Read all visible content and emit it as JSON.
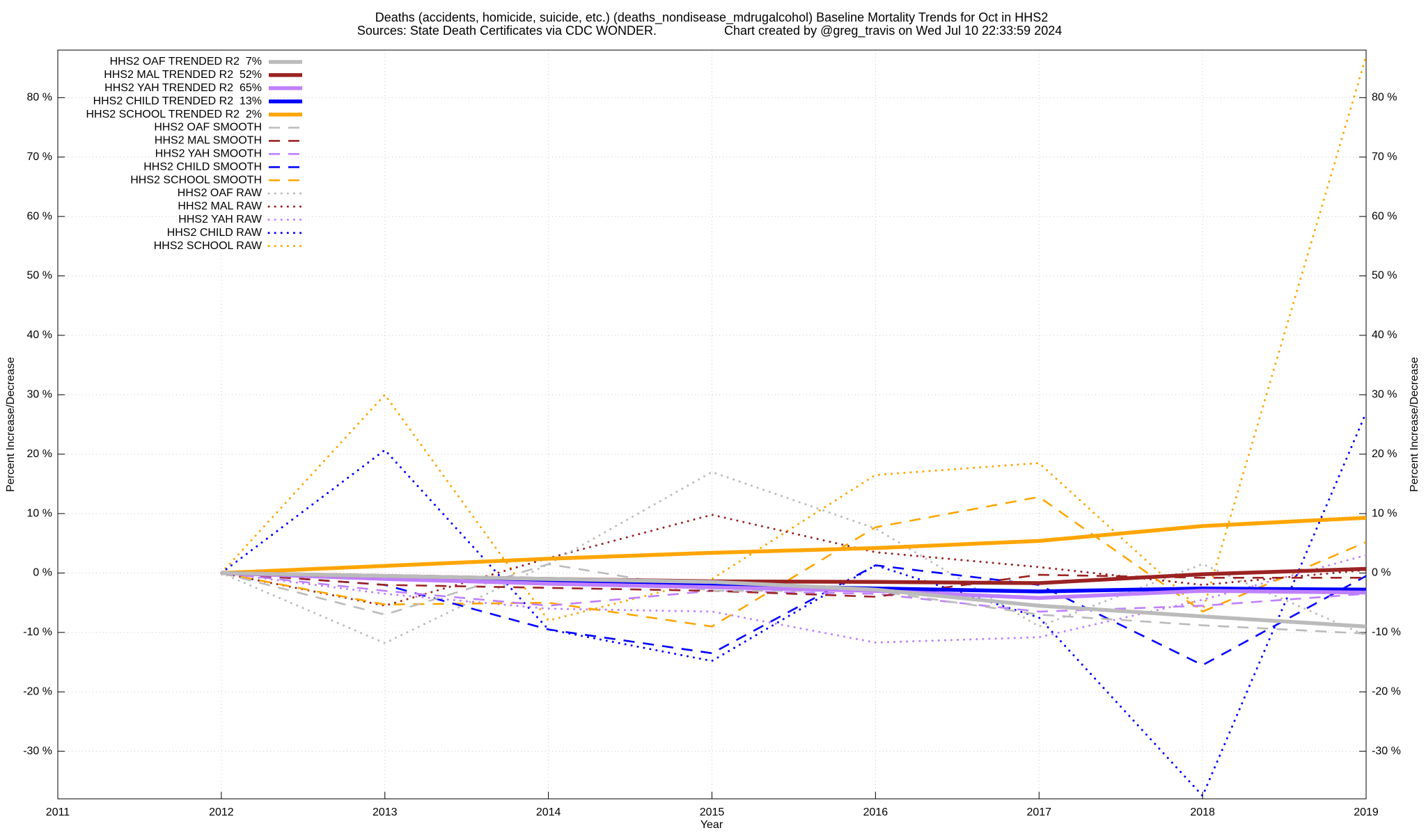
{
  "chart_data": {
    "type": "line",
    "title": "Deaths (accidents, homicide, suicide, etc.) (deaths_nondisease_mdrugalcohol)  Baseline Mortality Trends for Oct in HHS2",
    "source": "Sources: State Death Certificates via CDC WONDER.",
    "credit": "Chart created by @greg_travis on Wed Jul 10 22:33:59 2024",
    "xlabel": "Year",
    "ylabel": "Percent Increase/Decrease",
    "y2label": "Percent Increase/Decrease",
    "x": [
      2012,
      2013,
      2014,
      2015,
      2016,
      2017,
      2018,
      2019
    ],
    "xlim": [
      2011,
      2019
    ],
    "xticks": [
      2011,
      2012,
      2013,
      2014,
      2015,
      2016,
      2017,
      2018,
      2019
    ],
    "ylim": [
      -38,
      88
    ],
    "yticks": [
      {
        "value": -30,
        "label": "-30 %"
      },
      {
        "value": -20,
        "label": "-20 %"
      },
      {
        "value": -10,
        "label": "-10 %"
      },
      {
        "value": 0,
        "label": "0 %"
      },
      {
        "value": 10,
        "label": "10 %"
      },
      {
        "value": 20,
        "label": "20 %"
      },
      {
        "value": 30,
        "label": "30 %"
      },
      {
        "value": 40,
        "label": "40 %"
      },
      {
        "value": 50,
        "label": "50 %"
      },
      {
        "value": 60,
        "label": "60 %"
      },
      {
        "value": 70,
        "label": "70 %"
      },
      {
        "value": 80,
        "label": "80 %"
      }
    ],
    "y2lim": [
      -38,
      88
    ],
    "y2ticks": [
      {
        "value": -30,
        "label": "-30 %"
      },
      {
        "value": -20,
        "label": "-20 %"
      },
      {
        "value": -10,
        "label": "-10 %"
      },
      {
        "value": 0,
        "label": "0 %"
      },
      {
        "value": 10,
        "label": "10 %"
      },
      {
        "value": 20,
        "label": "20 %"
      },
      {
        "value": 30,
        "label": "30 %"
      },
      {
        "value": 40,
        "label": "40 %"
      },
      {
        "value": 50,
        "label": "50 %"
      },
      {
        "value": 60,
        "label": "60 %"
      },
      {
        "value": 70,
        "label": "70 %"
      },
      {
        "value": 80,
        "label": "80 %"
      }
    ],
    "grid": true,
    "legend": "top-left",
    "series": [
      {
        "name": "HHS2 OAF TRENDED R2  7%",
        "color": "#bbbbbb",
        "style": "solid",
        "values": [
          0,
          -0.5,
          -1,
          -1.5,
          -2.8,
          -5.5,
          -7.3,
          -9
        ]
      },
      {
        "name": "HHS2 MAL TRENDED R2  52%",
        "color": "#9b2323",
        "style": "solid",
        "values": [
          0,
          -0.5,
          -1,
          -1.4,
          -1.5,
          -1.7,
          -0.2,
          0.7
        ]
      },
      {
        "name": "HHS2 YAH TRENDED R2  65%",
        "color": "#bf80ff",
        "style": "solid",
        "values": [
          0,
          -1,
          -1.8,
          -2.4,
          -3,
          -4.2,
          -3,
          -3.3
        ]
      },
      {
        "name": "HHS2 CHILD TRENDED R2  13%",
        "color": "#0000ff",
        "style": "solid",
        "values": [
          0,
          -0.8,
          -1.5,
          -2,
          -2.6,
          -3.1,
          -2.6,
          -2.8
        ]
      },
      {
        "name": "HHS2 SCHOOL TRENDED R2  2%",
        "color": "#ffa500",
        "style": "solid",
        "values": [
          0,
          1.2,
          2.4,
          3.4,
          4.2,
          5.4,
          7.9,
          9.3
        ]
      },
      {
        "name": "HHS2 OAF SMOOTH",
        "color": "#bbbbbb",
        "style": "dashed",
        "values": [
          0,
          -7,
          1.5,
          -3,
          -3,
          -7,
          -8.8,
          -10.2
        ]
      },
      {
        "name": "HHS2 MAL SMOOTH",
        "color": "#9b2323",
        "style": "dashed",
        "values": [
          0,
          -2,
          -2.5,
          -3,
          -4,
          -0.3,
          -0.8,
          -0.8
        ]
      },
      {
        "name": "HHS2 YAH SMOOTH",
        "color": "#bf80ff",
        "style": "dashed",
        "values": [
          0,
          -3,
          -5.5,
          -3,
          -3.5,
          -6.5,
          -5.5,
          -3.5
        ]
      },
      {
        "name": "HHS2 CHILD SMOOTH",
        "color": "#0000ff",
        "style": "dashed",
        "values": [
          0,
          -2,
          -9.5,
          -13.5,
          1.3,
          -2,
          -15.5,
          -0.5
        ]
      },
      {
        "name": "HHS2 SCHOOL SMOOTH",
        "color": "#ffa500",
        "style": "dashed",
        "values": [
          0,
          -5.3,
          -5,
          -9,
          7.7,
          12.8,
          -6.5,
          5.2
        ]
      },
      {
        "name": "HHS2 OAF RAW",
        "color": "#bbbbbb",
        "style": "dotted",
        "values": [
          0,
          -11.8,
          1.5,
          17,
          7.5,
          -9,
          1.5,
          -10.5
        ]
      },
      {
        "name": "HHS2 MAL RAW",
        "color": "#9b2323",
        "style": "dotted",
        "values": [
          0,
          -5.5,
          2.5,
          9.8,
          3.5,
          1,
          -2,
          0.5
        ]
      },
      {
        "name": "HHS2 YAH RAW",
        "color": "#bf80ff",
        "style": "dotted",
        "values": [
          0,
          -3.5,
          -6,
          -6.5,
          -11.7,
          -10.8,
          -4.5,
          3
        ]
      },
      {
        "name": "HHS2 CHILD RAW",
        "color": "#0000ff",
        "style": "dotted",
        "values": [
          0,
          20.7,
          -9.5,
          -14.8,
          1.3,
          -7.5,
          -37.5,
          27
        ]
      },
      {
        "name": "HHS2 SCHOOL RAW",
        "color": "#ffa500",
        "style": "dotted",
        "values": [
          0,
          30,
          -8,
          -1,
          16.5,
          18.5,
          -6.5,
          87
        ]
      }
    ]
  }
}
